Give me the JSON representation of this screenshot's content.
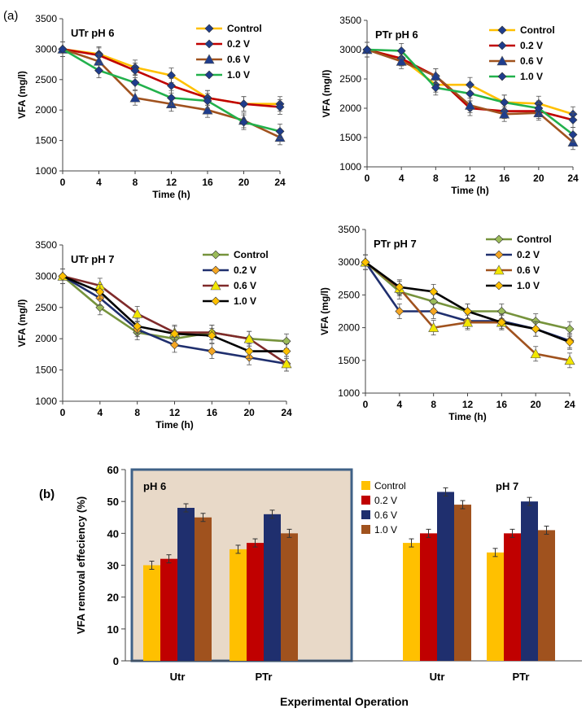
{
  "figure": {
    "panel_a_label": "(a)",
    "panel_b_label": "(b)"
  },
  "chart_data": [
    {
      "type": "line",
      "title": "UTr pH 6",
      "xlabel": "Time (h)",
      "ylabel": "VFA (mg/l)",
      "x": [
        0,
        4,
        8,
        12,
        16,
        20,
        24
      ],
      "xticks": [
        "0",
        "4",
        "8",
        "12",
        "16",
        "20",
        "24"
      ],
      "ylim": [
        1000,
        3500
      ],
      "yticks": [
        "1000",
        "1500",
        "2000",
        "2500",
        "3000",
        "3500"
      ],
      "legend_position": "top-right",
      "series": [
        {
          "name": "Control",
          "values": [
            3000,
            2920,
            2700,
            2570,
            2200,
            2100,
            2100
          ],
          "color": "#FFC000",
          "marker": "diamond",
          "marker_color": "#1F3D8C"
        },
        {
          "name": "0.2 V",
          "values": [
            3000,
            2900,
            2650,
            2400,
            2200,
            2100,
            2050
          ],
          "color": "#C00000",
          "marker": "diamond",
          "marker_color": "#1F3D8C"
        },
        {
          "name": "0.6 V",
          "values": [
            3000,
            2800,
            2200,
            2100,
            2000,
            1830,
            1550
          ],
          "color": "#A0521E",
          "marker": "triangle",
          "marker_color": "#1F3D8C"
        },
        {
          "name": "1.0 V",
          "values": [
            3000,
            2650,
            2450,
            2200,
            2150,
            1800,
            1650
          ],
          "color": "#22B14C",
          "marker": "diamond",
          "marker_color": "#1F3D8C"
        }
      ]
    },
    {
      "type": "line",
      "title": "PTr pH 6",
      "xlabel": "Time (h)",
      "ylabel": "VFA (mg/l)",
      "x": [
        0,
        4,
        8,
        12,
        16,
        20,
        24
      ],
      "xticks": [
        "0",
        "4",
        "8",
        "12",
        "16",
        "20",
        "24"
      ],
      "ylim": [
        1000,
        3500
      ],
      "yticks": [
        "1000",
        "1500",
        "2000",
        "2500",
        "3000",
        "3500"
      ],
      "legend_position": "top-right",
      "series": [
        {
          "name": "Control",
          "values": [
            3000,
            2850,
            2400,
            2400,
            2100,
            2080,
            1900
          ],
          "color": "#FFC000",
          "marker": "diamond",
          "marker_color": "#1F3D8C"
        },
        {
          "name": "0.2 V",
          "values": [
            3000,
            2850,
            2550,
            2000,
            1950,
            1950,
            1800
          ],
          "color": "#C00000",
          "marker": "diamond",
          "marker_color": "#1F3D8C"
        },
        {
          "name": "0.6 V",
          "values": [
            3000,
            2800,
            2550,
            2050,
            1900,
            1920,
            1420
          ],
          "color": "#A0521E",
          "marker": "triangle",
          "marker_color": "#1F3D8C"
        },
        {
          "name": "1.0 V",
          "values": [
            3000,
            2980,
            2350,
            2250,
            2100,
            2000,
            1550
          ],
          "color": "#22B14C",
          "marker": "diamond",
          "marker_color": "#1F3D8C"
        }
      ]
    },
    {
      "type": "line",
      "title": "UTr pH  7",
      "xlabel": "Time (h)",
      "ylabel": "VFA (mg/l)",
      "x": [
        0,
        4,
        8,
        12,
        16,
        20,
        24
      ],
      "xticks": [
        "0",
        "4",
        "8",
        "12",
        "16",
        "20",
        "24"
      ],
      "ylim": [
        1000,
        3500
      ],
      "yticks": [
        "1000",
        "1500",
        "2000",
        "2500",
        "3000",
        "3500"
      ],
      "legend_position": "top-right",
      "series": [
        {
          "name": "Control",
          "values": [
            3000,
            2500,
            2100,
            2000,
            2100,
            2000,
            1960
          ],
          "color": "#76933C",
          "marker": "diamond",
          "marker_color": "#9BBB59"
        },
        {
          "name": "0.2 V",
          "values": [
            3000,
            2650,
            2150,
            1900,
            1800,
            1700,
            1600
          ],
          "color": "#1F2F6E",
          "marker": "diamond",
          "marker_color": "#F5A623"
        },
        {
          "name": "0.6 V",
          "values": [
            3000,
            2850,
            2400,
            2100,
            2100,
            2000,
            1600
          ],
          "color": "#7F2A2A",
          "marker": "triangle",
          "marker_color": "#F2E600"
        },
        {
          "name": "1.0 V",
          "values": [
            3000,
            2750,
            2200,
            2080,
            2050,
            1800,
            1800
          ],
          "color": "#000000",
          "marker": "diamond",
          "marker_color": "#FFC000"
        }
      ]
    },
    {
      "type": "line",
      "title": "PTr pH  7",
      "xlabel": "Time (h)",
      "ylabel": "VFA (mg/l)",
      "x": [
        0,
        4,
        8,
        12,
        16,
        20,
        24
      ],
      "xticks": [
        "0",
        "4",
        "8",
        "12",
        "16",
        "20",
        "24"
      ],
      "ylim": [
        1000,
        3500
      ],
      "yticks": [
        "1000",
        "1500",
        "2000",
        "2500",
        "3000",
        "3500"
      ],
      "legend_position": "top-right",
      "series": [
        {
          "name": "Control",
          "values": [
            3000,
            2550,
            2400,
            2250,
            2250,
            2100,
            1980
          ],
          "color": "#76933C",
          "marker": "diamond",
          "marker_color": "#9BBB59"
        },
        {
          "name": "0.2 V",
          "values": [
            3000,
            2250,
            2250,
            2100,
            2100,
            1980,
            1800
          ],
          "color": "#1F2F6E",
          "marker": "diamond",
          "marker_color": "#F5A623"
        },
        {
          "name": "0.6 V",
          "values": [
            3000,
            2600,
            2000,
            2080,
            2080,
            1600,
            1500
          ],
          "color": "#A0521E",
          "marker": "triangle",
          "marker_color": "#F2E600"
        },
        {
          "name": "1.0 V",
          "values": [
            3000,
            2620,
            2550,
            2250,
            2080,
            1980,
            1780
          ],
          "color": "#000000",
          "marker": "diamond",
          "marker_color": "#FFC000"
        }
      ]
    },
    {
      "type": "bar",
      "xlabel": "Experimental Operation",
      "ylabel": "VFA removal  effeciency (%)",
      "ylim": [
        0,
        60
      ],
      "yticks": [
        "0",
        "10",
        "20",
        "30",
        "40",
        "50",
        "60"
      ],
      "legend_position": "top-center",
      "groups": [
        {
          "label": "pH 6",
          "categories": [
            "Utr",
            "PTr"
          ],
          "highlighted": true,
          "background": "#E8D9C8",
          "border": "#3F6187"
        },
        {
          "label": "pH 7",
          "categories": [
            "Utr",
            "PTr"
          ],
          "highlighted": false
        }
      ],
      "categories": [
        "Utr",
        "PTr",
        "Utr",
        "PTr"
      ],
      "series": [
        {
          "name": "Control",
          "color": "#FFC000",
          "values": [
            30,
            35,
            37,
            34
          ]
        },
        {
          "name": "0.2 V",
          "color": "#C00000",
          "values": [
            32,
            37,
            40,
            40
          ]
        },
        {
          "name": "0.6 V",
          "color": "#1F2F6E",
          "values": [
            48,
            46,
            53,
            50
          ]
        },
        {
          "name": "1.0 V",
          "color": "#A0521E",
          "values": [
            45,
            40,
            49,
            41
          ]
        }
      ]
    }
  ]
}
